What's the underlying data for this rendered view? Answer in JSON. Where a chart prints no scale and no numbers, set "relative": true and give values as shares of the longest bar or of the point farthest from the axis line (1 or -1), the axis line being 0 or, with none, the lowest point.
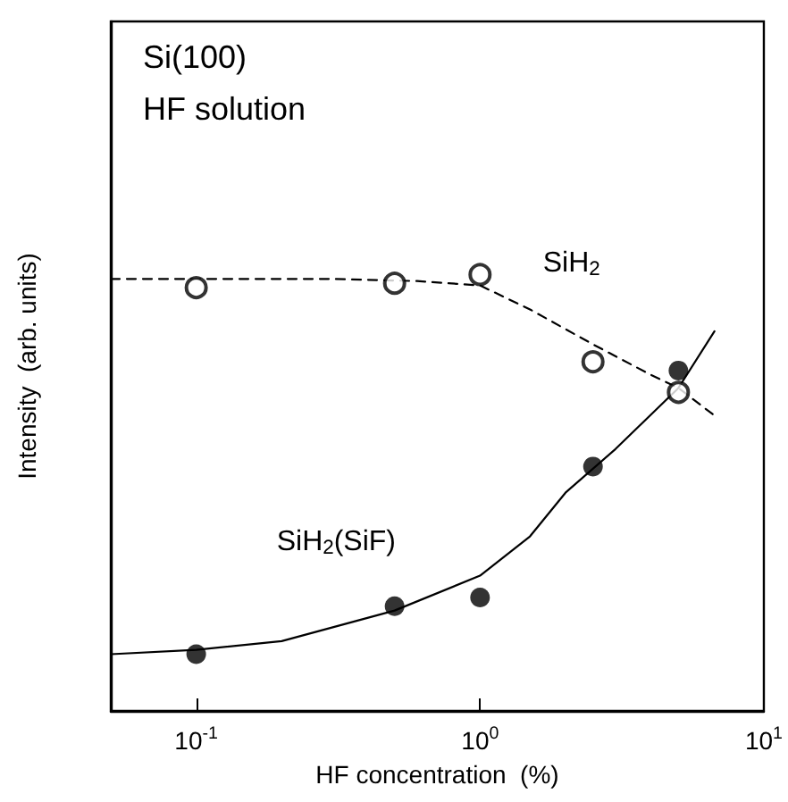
{
  "chart_data": {
    "type": "scatter",
    "title": "Si(100)",
    "subtitle": "HF solution",
    "xlabel": "HF concentration  (%)",
    "ylabel": "Intensity  (arb. units)",
    "relative": true,
    "log": "x",
    "grid": false,
    "legend": false,
    "xlim": [
      0.05,
      10
    ],
    "xticks": [
      {
        "value": 0.1,
        "label": "10$^{-1}$"
      },
      {
        "value": 1,
        "label": "10$^{0}$"
      },
      {
        "value": 10,
        "label": "10$^{1}$"
      }
    ],
    "series": [
      {
        "name": "SiH$_{2}$",
        "color": "#000000",
        "marker": "open circle",
        "x": [
          0.1,
          0.5,
          1,
          2.5,
          5
        ],
        "values": [
          0.97,
          0.98,
          1,
          0.8,
          0.73
        ]
      },
      {
        "name": "SiH$_{2}$(SiF)",
        "color": "#000000",
        "marker": "circle",
        "x": [
          0.1,
          0.5,
          1,
          2.5,
          5
        ],
        "values": [
          0.13,
          0.24,
          0.26,
          0.56,
          0.78
        ]
      },
      {
        "type": "line",
        "color": "#000000",
        "marker": "none",
        "line_style": "dashed",
        "x": [
          0.05,
          0.1,
          0.3,
          0.6,
          1,
          1.5,
          2.5,
          4,
          5,
          6.6
        ],
        "values": [
          0.99,
          0.99,
          0.99,
          0.985,
          0.975,
          0.92,
          0.84,
          0.77,
          0.74,
          0.68
        ]
      },
      {
        "type": "line",
        "color": "#000000",
        "marker": "none",
        "line_style": "solid",
        "x": [
          0.05,
          0.1,
          0.2,
          0.5,
          1,
          1.5,
          2,
          3,
          5,
          6.7
        ],
        "values": [
          0.13,
          0.14,
          0.16,
          0.23,
          0.31,
          0.4,
          0.5,
          0.6,
          0.74,
          0.87
        ]
      }
    ]
  }
}
